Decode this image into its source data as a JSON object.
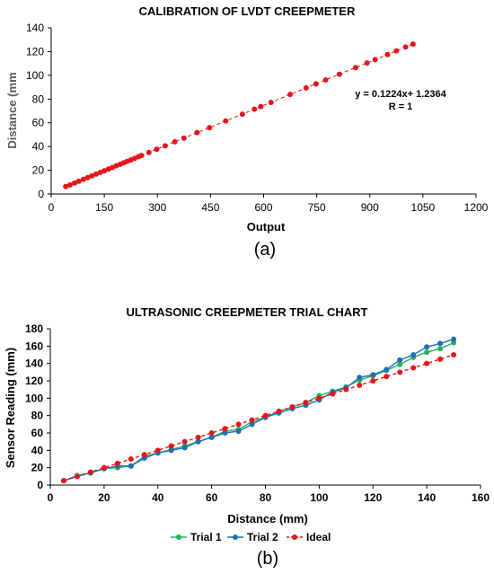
{
  "chart_data": [
    {
      "type": "scatter",
      "title": "CALIBRATION OF LVDT CREEPMETER",
      "xlabel": "Output",
      "ylabel": "Distance (mm",
      "xlim": [
        0,
        1200
      ],
      "ylim": [
        0,
        140
      ],
      "xticks": [
        "0",
        "150",
        "300",
        "450",
        "600",
        "750",
        "900",
        "1050",
        "1200"
      ],
      "yticks": [
        "0",
        "20",
        "40",
        "60",
        "80",
        "100",
        "120",
        "140"
      ],
      "trendline_equation": "y = 0.1224x+ 1.2364",
      "trendline_r": "R = 1",
      "panel_label": "(a)",
      "color": "#e8141b",
      "series": [
        {
          "x": [
            41,
            53,
            66,
            78,
            91,
            103,
            115,
            127,
            139,
            150,
            162,
            173,
            184,
            195,
            205,
            214,
            225,
            236,
            247,
            255,
            276,
            298,
            322,
            349,
            375,
            412,
            447,
            493,
            540,
            574,
            592,
            621,
            675,
            720,
            748,
            775,
            814,
            860,
            892,
            915,
            950,
            975,
            1001,
            1022
          ],
          "y": [
            6.3,
            7.7,
            9.3,
            10.8,
            12.4,
            13.8,
            15.3,
            16.8,
            18.3,
            19.6,
            21.1,
            22.4,
            23.8,
            25.1,
            26.3,
            27.4,
            28.8,
            30.1,
            31.5,
            32.4,
            35.0,
            37.7,
            40.6,
            44.0,
            47.1,
            51.7,
            55.9,
            61.6,
            67.3,
            71.5,
            73.7,
            77.2,
            83.9,
            89.4,
            92.8,
            96.1,
            100.9,
            106.5,
            110.4,
            113.2,
            117.5,
            120.6,
            123.8,
            126.3
          ]
        }
      ]
    },
    {
      "type": "line",
      "title": "ULTRASONIC CREEPMETER TRIAL CHART",
      "xlabel": "Distance (mm)",
      "ylabel": "Sensor Reading (mm)",
      "xlim": [
        0,
        160
      ],
      "ylim": [
        0,
        180
      ],
      "xticks": [
        "0",
        "20",
        "40",
        "60",
        "80",
        "100",
        "120",
        "140",
        "160"
      ],
      "yticks": [
        "0",
        "20",
        "40",
        "60",
        "80",
        "100",
        "120",
        "140",
        "160",
        "180"
      ],
      "panel_label": "(b)",
      "legend": "bottom",
      "x": [
        5,
        10,
        15,
        20,
        25,
        30,
        35,
        40,
        45,
        50,
        55,
        60,
        65,
        70,
        75,
        80,
        85,
        90,
        95,
        100,
        105,
        110,
        115,
        120,
        125,
        130,
        135,
        140,
        145,
        150
      ],
      "series": [
        {
          "name": "Trial 1",
          "color": "#21b35a",
          "values": [
            5,
            11,
            14,
            19,
            20,
            22,
            33,
            37,
            41,
            45,
            50,
            55,
            62,
            64,
            73,
            78,
            85,
            90,
            95,
            103,
            108,
            113,
            121,
            126,
            132,
            139,
            147,
            153,
            157,
            164
          ]
        },
        {
          "name": "Trial 2",
          "color": "#1f6fb3",
          "values": [
            5,
            10,
            14,
            19,
            22,
            22,
            31,
            37,
            40,
            43,
            50,
            55,
            60,
            62,
            70,
            78,
            83,
            88,
            92,
            98,
            107,
            112,
            124,
            127,
            133,
            144,
            150,
            159,
            163,
            168
          ]
        },
        {
          "name": "Ideal",
          "color": "#e8141b",
          "dashed": true,
          "values": [
            5,
            10,
            15,
            20,
            25,
            30,
            35,
            40,
            45,
            50,
            55,
            60,
            65,
            70,
            75,
            80,
            85,
            90,
            95,
            100,
            105,
            110,
            115,
            120,
            125,
            130,
            135,
            140,
            145,
            150
          ]
        }
      ]
    }
  ]
}
